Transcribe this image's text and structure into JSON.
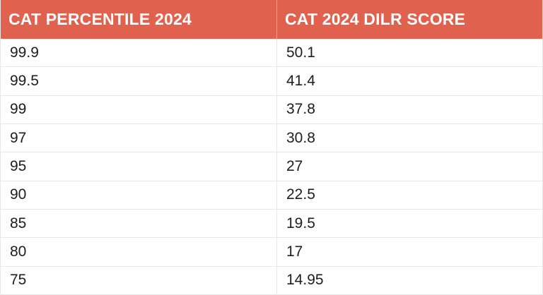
{
  "chart_data": {
    "type": "table",
    "columns": [
      "CAT PERCENTILE 2024",
      "CAT 2024 DILR SCORE"
    ],
    "rows": [
      [
        "99.9",
        "50.1"
      ],
      [
        "99.5",
        "41.4"
      ],
      [
        "99",
        "37.8"
      ],
      [
        "97",
        "30.8"
      ],
      [
        "95",
        "27"
      ],
      [
        "90",
        "22.5"
      ],
      [
        "85",
        "19.5"
      ],
      [
        "80",
        "17"
      ],
      [
        "75",
        "14.95"
      ]
    ]
  },
  "colors": {
    "header_background": "#E0624E",
    "header_text": "#FFFFFF",
    "body_text": "#1D1D1D",
    "grid_line": "#E7E7E7",
    "page_background": "#FFFFFF"
  }
}
